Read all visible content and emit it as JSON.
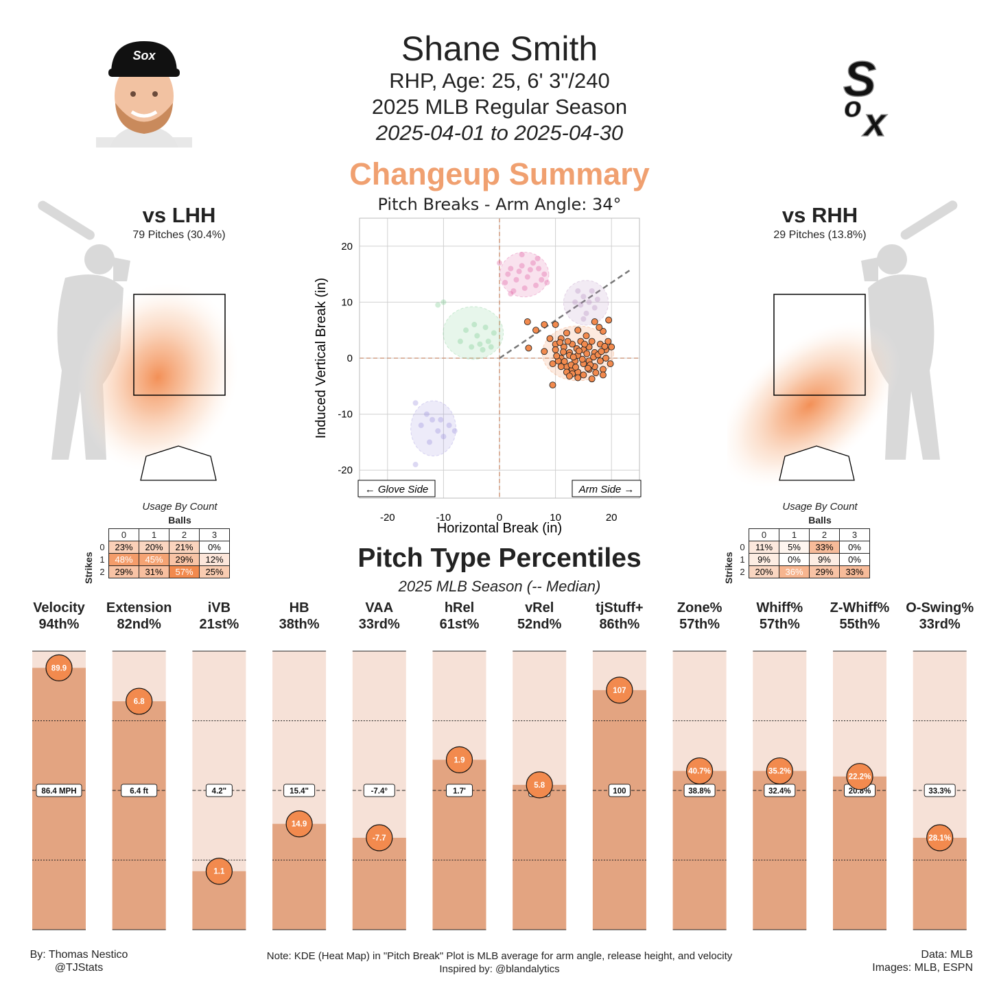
{
  "header": {
    "name": "Shane Smith",
    "bio": "RHP, Age: 25, 6' 3\"/240",
    "season": "2025 MLB Regular Season",
    "dates": "2025-04-01 to 2025-04-30",
    "pitch_title": "Changeup Summary",
    "pitch_color": "#f0a070"
  },
  "team_logo_text": "Sox",
  "lhh": {
    "title": "vs LHH",
    "sub": "79 Pitches (30.4%)"
  },
  "rhh": {
    "title": "vs RHH",
    "sub": "29 Pitches (13.8%)"
  },
  "usage_by_count": {
    "title": "Usage By Count",
    "balls_label": "Balls",
    "strikes_label": "Strikes",
    "ball_headers": [
      "0",
      "1",
      "2",
      "3"
    ],
    "strike_headers": [
      "0",
      "1",
      "2"
    ],
    "lhh": [
      [
        "23%",
        "20%",
        "21%",
        "0%"
      ],
      [
        "48%",
        "45%",
        "29%",
        "12%"
      ],
      [
        "29%",
        "31%",
        "57%",
        "25%"
      ]
    ],
    "rhh": [
      [
        "11%",
        "5%",
        "33%",
        "0%"
      ],
      [
        "9%",
        "0%",
        "9%",
        "0%"
      ],
      [
        "20%",
        "36%",
        "29%",
        "33%"
      ]
    ]
  },
  "chart_data": [
    {
      "type": "scatter",
      "title": "Pitch Breaks - Arm Angle: 34°",
      "xlabel": "Horizontal Break (in)",
      "ylabel": "Induced Vertical Break (in)",
      "xlim": [
        -25,
        25
      ],
      "ylim": [
        -25,
        25
      ],
      "xticks": [
        -20,
        -10,
        0,
        10,
        20
      ],
      "yticks": [
        -20,
        -10,
        0,
        10,
        20
      ],
      "grid": true,
      "arm_angle_deg": 34,
      "annotations": [
        "← Glove Side",
        "Arm Side →"
      ],
      "series": [
        {
          "color": "#f28a4e",
          "points": [
            [
              5,
              6.5
            ],
            [
              8,
              6
            ],
            [
              6.5,
              5
            ],
            [
              10,
              6
            ],
            [
              12,
              4.5
            ],
            [
              11,
              3.5
            ],
            [
              14,
              5
            ],
            [
              17,
              6.5
            ],
            [
              19.5,
              6.8
            ],
            [
              15.5,
              4
            ],
            [
              18.5,
              4.8
            ],
            [
              10,
              2.5
            ],
            [
              11.5,
              2
            ],
            [
              12.5,
              1
            ],
            [
              13,
              2.5
            ],
            [
              14,
              0.5
            ],
            [
              15,
              1.5
            ],
            [
              16,
              2
            ],
            [
              17,
              1
            ],
            [
              18,
              2.5
            ],
            [
              19,
              1.5
            ],
            [
              20,
              2
            ],
            [
              16.5,
              3
            ],
            [
              14.5,
              3
            ],
            [
              13.5,
              -0.5
            ],
            [
              12.5,
              0.5
            ],
            [
              11,
              0
            ],
            [
              10,
              1.5
            ],
            [
              9.5,
              -1
            ],
            [
              10.5,
              -0.5
            ],
            [
              12,
              -1.5
            ],
            [
              13,
              -2
            ],
            [
              14,
              -2.5
            ],
            [
              15,
              -1
            ],
            [
              16,
              -0.5
            ],
            [
              17,
              -1.5
            ],
            [
              18,
              -0.5
            ],
            [
              19,
              0
            ],
            [
              18.5,
              -2
            ],
            [
              16,
              -2
            ],
            [
              15,
              -3
            ],
            [
              14,
              -3.5
            ],
            [
              13,
              -2.8
            ],
            [
              12,
              -2.5
            ],
            [
              11,
              -1.5
            ],
            [
              9.5,
              -4.8
            ],
            [
              12.5,
              -3.2
            ],
            [
              16.5,
              -3.7
            ],
            [
              18.5,
              -3
            ],
            [
              8,
              1.2
            ],
            [
              9,
              3.5
            ],
            [
              17.8,
              5.5
            ],
            [
              19.4,
              3
            ],
            [
              15.2,
              2.5
            ],
            [
              13.8,
              1.7
            ],
            [
              12.2,
              3
            ],
            [
              10.8,
              2.8
            ],
            [
              16.8,
              0.2
            ],
            [
              14.8,
              -0.2
            ],
            [
              17.6,
              0.6
            ],
            [
              11.6,
              -0.6
            ],
            [
              13.2,
              0.2
            ],
            [
              15.6,
              0.8
            ],
            [
              19.8,
              -1
            ],
            [
              12.8,
              -1.2
            ],
            [
              18.2,
              1.2
            ],
            [
              14.2,
              1.3
            ],
            [
              16.2,
              -1.2
            ],
            [
              10.2,
              0.4
            ],
            [
              17.2,
              -2.6
            ],
            [
              5.2,
              1.8
            ],
            [
              15.8,
              -1.8
            ],
            [
              13.6,
              -1.6
            ],
            [
              11.4,
              1.1
            ],
            [
              18.8,
              2.1
            ]
          ]
        },
        {
          "color": "#e05da0",
          "points": [
            [
              0,
              17
            ],
            [
              2,
              16
            ],
            [
              4,
              16.5
            ],
            [
              6,
              17
            ],
            [
              7,
              16
            ],
            [
              8,
              15
            ],
            [
              3,
              14
            ],
            [
              5,
              14.5
            ],
            [
              1,
              13.5
            ],
            [
              2.5,
              12
            ],
            [
              4.5,
              12.5
            ],
            [
              6.5,
              13
            ],
            [
              8.5,
              13.5
            ],
            [
              3.5,
              15.5
            ],
            [
              5.5,
              15.8
            ],
            [
              6.8,
              17.8
            ],
            [
              1.5,
              15
            ],
            [
              4,
              18.5
            ],
            [
              7.5,
              14
            ],
            [
              2,
              11.5
            ]
          ]
        },
        {
          "color": "#b88fc0",
          "points": [
            [
              14,
              12
            ],
            [
              15,
              11
            ],
            [
              16,
              10
            ],
            [
              17,
              9
            ],
            [
              13.5,
              10
            ],
            [
              15.5,
              8
            ],
            [
              16.5,
              12
            ],
            [
              14.5,
              9.5
            ],
            [
              17.5,
              10.5
            ],
            [
              15,
              7
            ]
          ]
        },
        {
          "color": "#7ccc8e",
          "points": [
            [
              -6,
              5
            ],
            [
              -4,
              4
            ],
            [
              -2,
              3
            ],
            [
              -5,
              2
            ],
            [
              -3,
              1.5
            ],
            [
              -1,
              4.5
            ],
            [
              -4.5,
              6
            ],
            [
              -7,
              3
            ],
            [
              -2.5,
              5.5
            ],
            [
              -3.5,
              2.5
            ],
            [
              -10,
              10
            ],
            [
              -11,
              9.5
            ],
            [
              -1.5,
              2
            ]
          ]
        },
        {
          "color": "#9b8fdc",
          "points": [
            [
              -15,
              -8
            ],
            [
              -14,
              -12
            ],
            [
              -12,
              -11
            ],
            [
              -11,
              -13
            ],
            [
              -10,
              -14
            ],
            [
              -9,
              -12
            ],
            [
              -8,
              -13
            ],
            [
              -12.5,
              -15
            ],
            [
              -13,
              -10
            ],
            [
              -10.5,
              -11
            ],
            [
              -15,
              -19
            ]
          ]
        }
      ]
    },
    {
      "type": "bar",
      "title": "Pitch Type Percentiles",
      "subtitle": "2025 MLB Season (-- Median)",
      "ylim": [
        0,
        100
      ],
      "categories": [
        "Velocity",
        "Extension",
        "iVB",
        "HB",
        "VAA",
        "hRel",
        "vRel",
        "tjStuff+",
        "Zone%",
        "Whiff%",
        "Z-Whiff%",
        "O-Swing%"
      ],
      "percentile_labels": [
        "94th%",
        "82nd%",
        "21st%",
        "38th%",
        "33rd%",
        "61st%",
        "52nd%",
        "86th%",
        "57th%",
        "57th%",
        "55th%",
        "33rd%"
      ],
      "values": [
        94,
        82,
        21,
        38,
        33,
        61,
        52,
        86,
        57,
        57,
        55,
        33
      ],
      "player_values": [
        "89.9",
        "6.8",
        "1.1",
        "14.9",
        "-7.7",
        "1.9",
        "5.8",
        "107",
        "40.7%",
        "35.2%",
        "22.2%",
        "28.1%"
      ],
      "median_values": [
        "86.4 MPH",
        "6.4 ft",
        "4.2\"",
        "15.4\"",
        "-7.4°",
        "1.7'",
        "5.8",
        "100",
        "38.8%",
        "32.4%",
        "20.8%",
        "33.3%"
      ]
    }
  ],
  "footer": {
    "by": "By: Thomas Nestico",
    "handle": "@TJStats",
    "note": "Note: KDE (Heat Map) in \"Pitch Break\" Plot is MLB average for arm angle, release height, and velocity",
    "inspired": "Inspired by: @blandalytics",
    "data": "Data: MLB",
    "images": "Images: MLB, ESPN"
  }
}
